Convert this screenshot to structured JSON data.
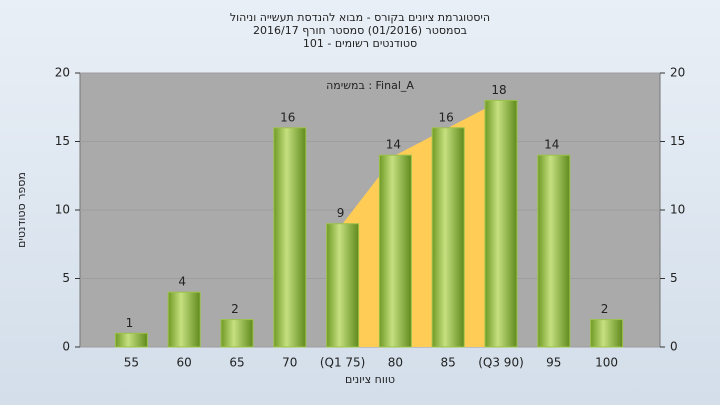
{
  "chart_data": {
    "type": "bar",
    "title_lines": [
      "היסטוגרמת ציונים בקורס - מבוא להנדסת תעשייה וניהול",
      "בסמסטר  (01/2016)  סמסטר חורף 2016/17",
      "סטודנטים רשומים - 101"
    ],
    "annotation": "במשימה : Final_A",
    "x_label": "טווח ציונים",
    "y_label": "מספר סטודנטים",
    "categories": [
      "55",
      "60",
      "65",
      "70",
      "(Q1 75)",
      "80",
      "85",
      "(Q3 90)",
      "95",
      "100"
    ],
    "values": [
      1,
      4,
      2,
      16,
      9,
      14,
      16,
      18,
      14,
      2
    ],
    "color": "#9cc24a",
    "area_color": "#ffcc55",
    "ylim": [
      0,
      20
    ],
    "yticks": [
      0,
      5,
      10,
      15,
      20
    ],
    "y2lim": [
      0,
      20
    ],
    "y2ticks": [
      0,
      5,
      10,
      15,
      20
    ],
    "grid": true
  }
}
